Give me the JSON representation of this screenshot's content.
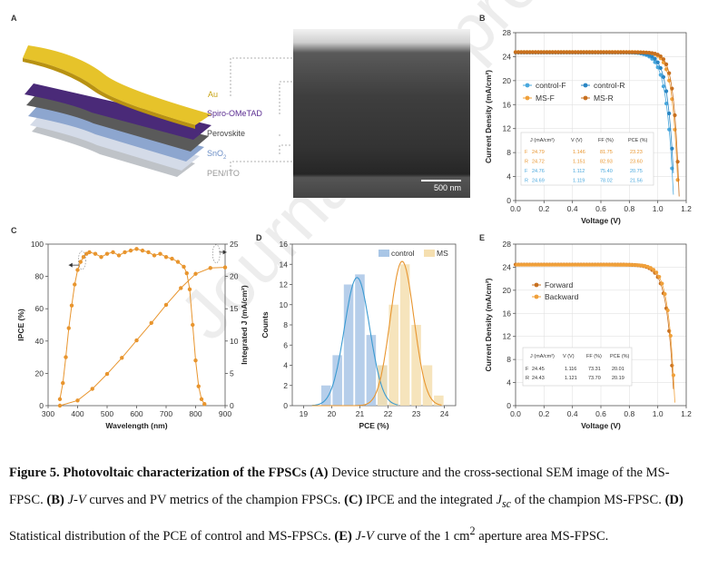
{
  "panels": {
    "a": "A",
    "b": "B",
    "c": "C",
    "d": "D",
    "e": "E"
  },
  "layers": {
    "au": "Au",
    "spiro": "Spiro-OMeTAD",
    "perov": "Perovskite",
    "sno2": "SnO",
    "sno2_sub": "2",
    "pen": "PEN/ITO"
  },
  "sem": {
    "scale": "500 nm"
  },
  "watermark": "Journal Pre-proof",
  "tableB": {
    "headers": [
      "J",
      "(mA/cm²)",
      "V",
      "(V)",
      "FF (%)",
      "PCE (%)"
    ],
    "rows": [
      {
        "k": "F",
        "jsc": "24.79",
        "voc": "1.146",
        "ff": "81.75",
        "pce": "23.23",
        "color": "#e8952e"
      },
      {
        "k": "R",
        "jsc": "24.72",
        "voc": "1.151",
        "ff": "82.93",
        "pce": "23.60",
        "color": "#e8952e"
      },
      {
        "k": "F",
        "jsc": "24.76",
        "voc": "1.112",
        "ff": "75.40",
        "pce": "20.75",
        "color": "#4aa8dd"
      },
      {
        "k": "R",
        "jsc": "24.69",
        "voc": "1.119",
        "ff": "78.02",
        "pce": "21.56",
        "color": "#4aa8dd"
      }
    ]
  },
  "tableE": {
    "rows": [
      {
        "k": "F",
        "jsc": "24.45",
        "voc": "1.116",
        "ff": "73.31",
        "pce": "20.01"
      },
      {
        "k": "R",
        "jsc": "24.43",
        "voc": "1.121",
        "ff": "73.70",
        "pce": "20.19"
      }
    ]
  },
  "chart_data": [
    {
      "panel": "B",
      "type": "line",
      "xlabel": "Voltage (V)",
      "ylabel": "Current Density (mA/cm²)",
      "xlim": [
        0,
        1.2
      ],
      "ylim": [
        0,
        28
      ],
      "xticks": [
        "0.0",
        "0.2",
        "0.4",
        "0.6",
        "0.8",
        "1.0",
        "1.2"
      ],
      "yticks": [
        "0",
        "4",
        "8",
        "12",
        "16",
        "20",
        "24",
        "28"
      ],
      "legend": [
        "control-F",
        "control-R",
        "MS-F",
        "MS-R"
      ],
      "series": [
        {
          "name": "control-F",
          "jsc": 24.76,
          "voc": 1.112,
          "color": "#4aa8dd",
          "shape": "curve"
        },
        {
          "name": "control-R",
          "jsc": 24.69,
          "voc": 1.119,
          "color": "#4aa8dd",
          "shape": "curve"
        },
        {
          "name": "MS-F",
          "jsc": 24.79,
          "voc": 1.146,
          "color": "#e8952e",
          "shape": "curve"
        },
        {
          "name": "MS-R",
          "jsc": 24.72,
          "voc": 1.151,
          "color": "#e8952e",
          "shape": "curve"
        }
      ]
    },
    {
      "panel": "C",
      "type": "line",
      "xlabel": "Wavelength (nm)",
      "ylabel": "IPCE (%)",
      "y2label": "Integrated J (mA/cm²)",
      "xlim": [
        300,
        900
      ],
      "ylim": [
        0,
        100
      ],
      "y2lim": [
        0,
        25
      ],
      "xticks": [
        "300",
        "400",
        "500",
        "600",
        "700",
        "800",
        "900"
      ],
      "yticks": [
        "0",
        "20",
        "40",
        "60",
        "80",
        "100"
      ],
      "y2ticks": [
        "0",
        "5",
        "10",
        "15",
        "20",
        "25"
      ],
      "ipce": {
        "x": [
          340,
          350,
          360,
          370,
          380,
          390,
          400,
          410,
          420,
          430,
          440,
          460,
          480,
          500,
          520,
          540,
          560,
          580,
          600,
          620,
          640,
          660,
          680,
          700,
          720,
          740,
          760,
          770,
          780,
          790,
          800,
          810,
          820,
          830
        ],
        "y": [
          4,
          14,
          30,
          48,
          62,
          75,
          84,
          89,
          92,
          94,
          95,
          94,
          92,
          94,
          95,
          93,
          95,
          96,
          97,
          96,
          95,
          93,
          94,
          92,
          91,
          89,
          86,
          82,
          72,
          50,
          28,
          12,
          4,
          1
        ]
      },
      "intJ": {
        "x": [
          340,
          400,
          450,
          500,
          550,
          600,
          650,
          700,
          750,
          800,
          850,
          900
        ],
        "y": [
          0,
          0.8,
          2.6,
          4.9,
          7.4,
          10.1,
          12.8,
          15.6,
          18.2,
          20.4,
          21.3,
          21.4
        ]
      },
      "color": "#e8952e"
    },
    {
      "panel": "D",
      "type": "bar",
      "xlabel": "PCE (%)",
      "ylabel": "Counts",
      "xlim": [
        18.6,
        24.4
      ],
      "ylim": [
        0,
        16
      ],
      "xticks": [
        "19",
        "20",
        "21",
        "22",
        "23",
        "24"
      ],
      "yticks": [
        "0",
        "2",
        "4",
        "6",
        "8",
        "10",
        "12",
        "14",
        "16"
      ],
      "legend": [
        "control",
        "MS"
      ],
      "series": [
        {
          "name": "control",
          "x": [
            19.8,
            20.2,
            20.6,
            21.0,
            21.4,
            21.8
          ],
          "values": [
            2,
            5,
            12,
            13,
            7,
            4
          ],
          "color": "#a9c6e6"
        },
        {
          "name": "MS",
          "x": [
            21.8,
            22.2,
            22.6,
            23.0,
            23.4,
            23.8
          ],
          "values": [
            4,
            10,
            14,
            8,
            4,
            1
          ],
          "color": "#f5dfb0"
        }
      ]
    },
    {
      "panel": "E",
      "type": "line",
      "xlabel": "Voltage (V)",
      "ylabel": "Current Density (mA/cm²)",
      "xlim": [
        0,
        1.2
      ],
      "ylim": [
        0,
        28
      ],
      "xticks": [
        "0.0",
        "0.2",
        "0.4",
        "0.6",
        "0.8",
        "1.0",
        "1.2"
      ],
      "yticks": [
        "0",
        "4",
        "8",
        "12",
        "16",
        "20",
        "24",
        "28"
      ],
      "legend": [
        "Forward",
        "Backward"
      ],
      "series": [
        {
          "name": "Forward",
          "jsc": 24.45,
          "voc": 1.116,
          "color": "#c8701f"
        },
        {
          "name": "Backward",
          "jsc": 24.43,
          "voc": 1.121,
          "color": "#f0a03a"
        }
      ]
    }
  ],
  "caption": {
    "fig": "Figure 5. Photovoltaic characterization of the FPSCs",
    "a": "(A)",
    "a_text": " Device structure and the cross-sectional SEM image of the MS-FPSC. ",
    "b": "(B)",
    "b_jv": "J-V",
    "b_text": " curves and PV metrics of the champion FPSCs. ",
    "c": "(C)",
    "c_text": " IPCE and the integrated ",
    "c_j": "J",
    "c_sub": "sc",
    "c_text2": " of the champion MS-FPSC. ",
    "d": "(D)",
    "d_text": " Statistical distribution of the PCE of control and MS-FPSCs. ",
    "e": "(E)",
    "e_jv": "J-V",
    "e_text": " curve of the 1 cm",
    "e_sup": "2",
    "e_text2": " aperture area MS-FPSC."
  }
}
